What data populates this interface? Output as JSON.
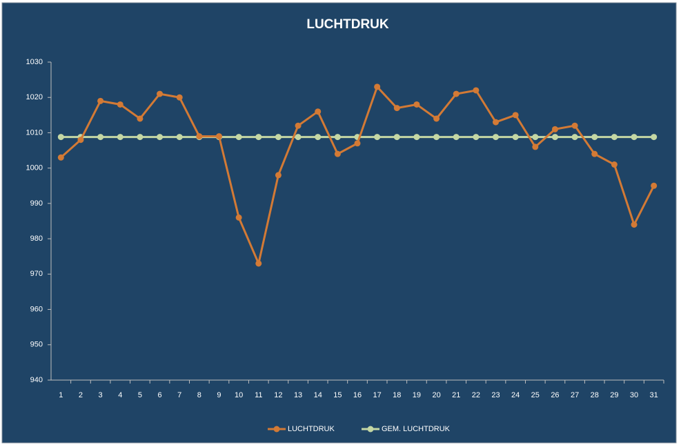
{
  "chart_data": {
    "type": "line",
    "title": "LUCHTDRUK",
    "categories": [
      "1",
      "2",
      "3",
      "4",
      "5",
      "6",
      "7",
      "8",
      "9",
      "10",
      "11",
      "12",
      "13",
      "14",
      "15",
      "16",
      "17",
      "18",
      "19",
      "20",
      "21",
      "22",
      "23",
      "24",
      "25",
      "26",
      "27",
      "28",
      "29",
      "30",
      "31"
    ],
    "series": [
      {
        "name": "LUCHTDRUK",
        "color": "#d37a35",
        "values": [
          1003,
          1008,
          1019,
          1018,
          1014,
          1021,
          1020,
          1009,
          1009,
          986,
          973,
          998,
          1012,
          1016,
          1004,
          1007,
          1023,
          1017,
          1018,
          1014,
          1021,
          1022,
          1013,
          1015,
          1006,
          1011,
          1012,
          1004,
          1001,
          984,
          995
        ]
      },
      {
        "name": "GEM. LUCHTDRUK",
        "color": "#c4d7a4",
        "values": [
          1008.8,
          1008.8,
          1008.8,
          1008.8,
          1008.8,
          1008.8,
          1008.8,
          1008.8,
          1008.8,
          1008.8,
          1008.8,
          1008.8,
          1008.8,
          1008.8,
          1008.8,
          1008.8,
          1008.8,
          1008.8,
          1008.8,
          1008.8,
          1008.8,
          1008.8,
          1008.8,
          1008.8,
          1008.8,
          1008.8,
          1008.8,
          1008.8,
          1008.8,
          1008.8,
          1008.8
        ]
      }
    ],
    "ylim": [
      940,
      1030
    ],
    "yticks": [
      940,
      950,
      960,
      970,
      980,
      990,
      1000,
      1010,
      1020,
      1030
    ],
    "grid": false,
    "legend": "bottom"
  }
}
